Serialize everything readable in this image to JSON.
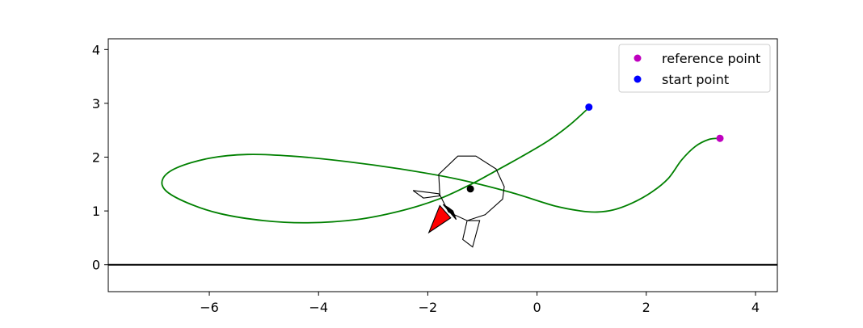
{
  "chart_data": {
    "type": "line",
    "title": "",
    "xlabel": "",
    "ylabel": "",
    "xlim": [
      -7.85,
      4.4
    ],
    "ylim": [
      -0.5,
      4.2
    ],
    "grid": false,
    "legend_position": "top-right",
    "xticks": [
      {
        "value": -6,
        "label": "−6"
      },
      {
        "value": -4,
        "label": "−4"
      },
      {
        "value": -2,
        "label": "−2"
      },
      {
        "value": 0,
        "label": "0"
      },
      {
        "value": 2,
        "label": "2"
      },
      {
        "value": 4,
        "label": "4"
      }
    ],
    "yticks": [
      {
        "value": 0,
        "label": "0"
      },
      {
        "value": 1,
        "label": "1"
      },
      {
        "value": 2,
        "label": "2"
      },
      {
        "value": 3,
        "label": "3"
      },
      {
        "value": 4,
        "label": "4"
      }
    ],
    "legend": [
      {
        "label": "reference point",
        "color": "#bf00bf"
      },
      {
        "label": "start point",
        "color": "#0000ff"
      }
    ],
    "ground_line": {
      "y": 0,
      "color": "#000000"
    },
    "trajectory": {
      "color": "#008000",
      "x": [
        0.95,
        0.6,
        0.2,
        -0.3,
        -0.8,
        -1.2,
        -1.8,
        -2.5,
        -3.3,
        -4.2,
        -5.0,
        -5.8,
        -6.4,
        -6.8,
        -6.85,
        -6.6,
        -6.0,
        -5.3,
        -4.5,
        -3.5,
        -2.5,
        -1.5,
        -0.5,
        0.3,
        0.8,
        1.1,
        1.4,
        1.75,
        2.1,
        2.4,
        2.65,
        2.9,
        3.15,
        3.35
      ],
      "y": [
        2.92,
        2.6,
        2.3,
        2.0,
        1.72,
        1.5,
        1.22,
        1.0,
        0.84,
        0.78,
        0.82,
        0.95,
        1.15,
        1.38,
        1.6,
        1.8,
        1.98,
        2.05,
        2.02,
        1.92,
        1.78,
        1.6,
        1.35,
        1.1,
        1.0,
        0.98,
        1.02,
        1.15,
        1.35,
        1.6,
        1.95,
        2.2,
        2.33,
        2.35
      ]
    },
    "reference_point": {
      "x": 3.35,
      "y": 2.35,
      "color": "#bf00bf"
    },
    "start_point": {
      "x": 0.95,
      "y": 2.93,
      "color": "#0000ff"
    },
    "center_point": {
      "x": -1.22,
      "y": 1.41,
      "color": "#000000"
    },
    "body_outline": {
      "x": [
        -1.45,
        -1.12,
        -0.75,
        -0.6,
        -0.63,
        -0.95,
        -1.28,
        -1.62,
        -1.78,
        -1.8
      ],
      "y": [
        2.02,
        2.02,
        1.78,
        1.45,
        1.22,
        0.93,
        0.82,
        0.98,
        1.3,
        1.68
      ]
    },
    "leg_left": {
      "x": [
        -1.8,
        -2.27,
        -2.08,
        -1.78
      ],
      "y": [
        1.32,
        1.38,
        1.24,
        1.28
      ]
    },
    "leg_bottom": {
      "x": [
        -1.28,
        -1.36,
        -1.18,
        -1.05
      ],
      "y": [
        0.82,
        0.47,
        0.33,
        0.82
      ]
    },
    "thruster_flame": {
      "x": [
        -1.78,
        -1.58,
        -1.98
      ],
      "y": [
        1.1,
        0.87,
        0.6
      ],
      "color": "#ff0000"
    },
    "thruster_arrow": {
      "x": [
        -1.72,
        -1.48,
        -1.54,
        -1.62
      ],
      "y": [
        1.12,
        0.84,
        1.0,
        1.06
      ],
      "color": "#000000"
    }
  }
}
